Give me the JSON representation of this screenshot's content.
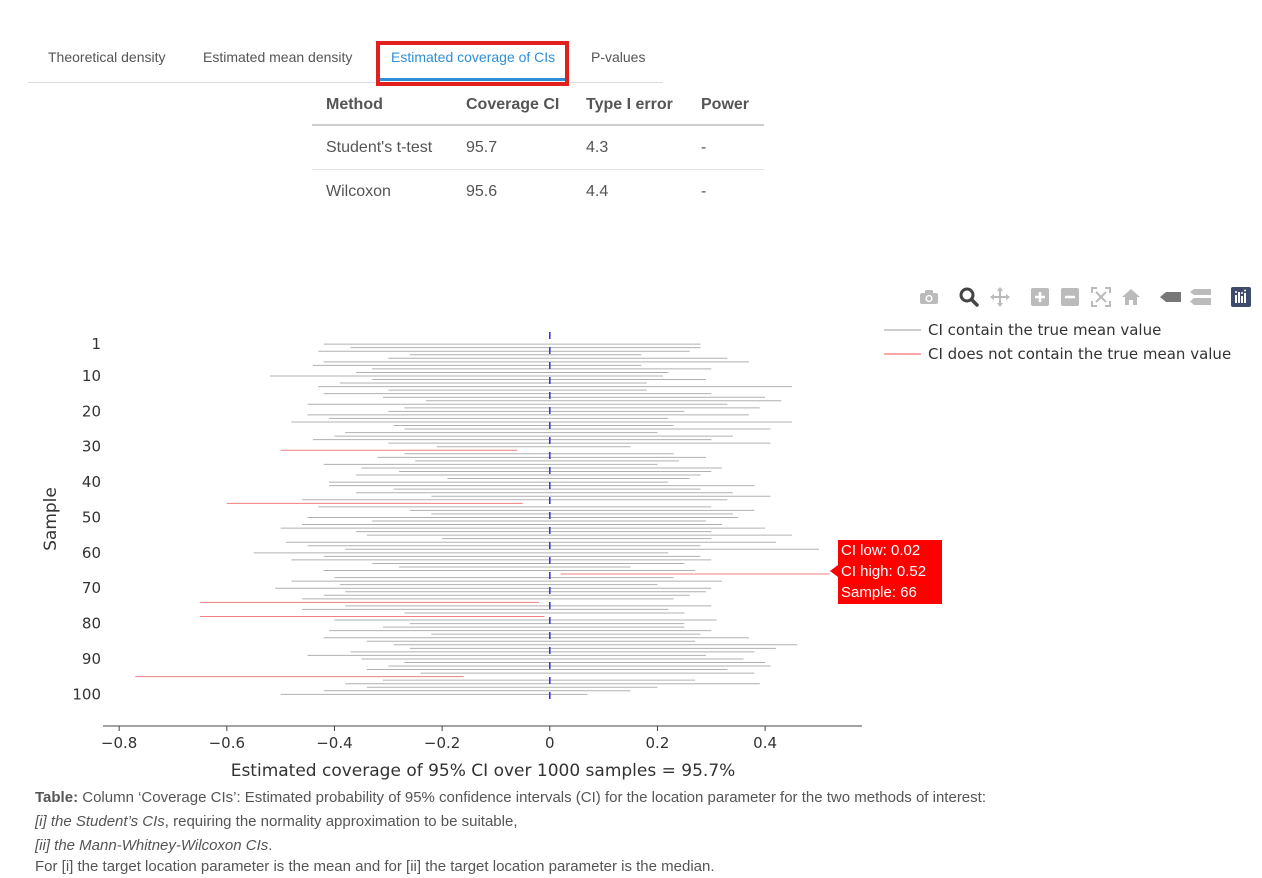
{
  "tabs": [
    {
      "label": "Theoretical density"
    },
    {
      "label": "Estimated mean density"
    },
    {
      "label": "Estimated coverage of CIs"
    },
    {
      "label": "P-values"
    }
  ],
  "table": {
    "headers": [
      "Method",
      "Coverage CI",
      "Type I error",
      "Power"
    ],
    "rows": [
      [
        "Student's t-test",
        "95.7",
        "4.3",
        "-"
      ],
      [
        "Wilcoxon",
        "95.6",
        "4.4",
        "-"
      ]
    ]
  },
  "modebar": [
    "camera-icon",
    "zoom-icon",
    "pan-icon",
    "zoom-in-icon",
    "zoom-out-icon",
    "autoscale-icon",
    "home-icon",
    "spike-lines-icon",
    "compare-hover-icon",
    "plotly-logo-icon"
  ],
  "chart_data": {
    "type": "interval",
    "title": "",
    "xlabel": "Estimated coverage of 95% CI over 1000 samples = 95.7%",
    "ylabel": "Sample",
    "xlim": [
      -0.83,
      0.58
    ],
    "ylim": [
      -3,
      105
    ],
    "x_ticks": [
      -0.8,
      -0.6,
      -0.4,
      -0.2,
      0,
      0.2,
      0.4
    ],
    "x_tick_labels": [
      "−0.8",
      "−0.6",
      "−0.4",
      "−0.2",
      "0",
      "0.2",
      "0.4"
    ],
    "y_ticks": [
      1,
      10,
      20,
      30,
      40,
      50,
      60,
      70,
      80,
      90,
      100
    ],
    "y_tick_labels": [
      "1",
      "10",
      "20",
      "30",
      "40",
      "50",
      "60",
      "70",
      "80",
      "90",
      "100"
    ],
    "true_mean": 0,
    "legend": [
      {
        "name": "CI contain the true mean value",
        "color": "#b0b0b0"
      },
      {
        "name": "CI does not contain the true mean value",
        "color": "#ff7070"
      }
    ],
    "colors": {
      "contain": "#b0b0b0",
      "miss": "#f08080",
      "reference": "#3a3ad6"
    },
    "intervals": [
      [
        -0.42,
        0.28
      ],
      [
        -0.37,
        0.28
      ],
      [
        -0.43,
        0.26
      ],
      [
        -0.26,
        0.17
      ],
      [
        -0.3,
        0.33
      ],
      [
        -0.42,
        0.37
      ],
      [
        -0.44,
        0.17
      ],
      [
        -0.33,
        0.3
      ],
      [
        -0.36,
        0.22
      ],
      [
        -0.52,
        0.21
      ],
      [
        -0.33,
        0.29
      ],
      [
        -0.39,
        0.18
      ],
      [
        -0.43,
        0.45
      ],
      [
        -0.3,
        0.18
      ],
      [
        -0.42,
        0.3
      ],
      [
        -0.31,
        0.4
      ],
      [
        -0.23,
        0.43
      ],
      [
        -0.45,
        0.33
      ],
      [
        -0.27,
        0.39
      ],
      [
        -0.3,
        0.25
      ],
      [
        -0.45,
        0.37
      ],
      [
        -0.41,
        0.22
      ],
      [
        -0.48,
        0.45
      ],
      [
        -0.29,
        0.23
      ],
      [
        -0.27,
        0.41
      ],
      [
        -0.38,
        0.2
      ],
      [
        -0.4,
        0.34
      ],
      [
        -0.44,
        0.3
      ],
      [
        -0.3,
        0.41
      ],
      [
        -0.21,
        0.15
      ],
      [
        -0.5,
        -0.06
      ],
      [
        -0.27,
        0.23
      ],
      [
        -0.32,
        0.29
      ],
      [
        -0.25,
        0.24
      ],
      [
        -0.42,
        0.2
      ],
      [
        -0.35,
        0.32
      ],
      [
        -0.28,
        0.3
      ],
      [
        -0.36,
        0.28
      ],
      [
        -0.19,
        0.26
      ],
      [
        -0.41,
        0.22
      ],
      [
        -0.41,
        0.38
      ],
      [
        -0.29,
        0.28
      ],
      [
        -0.36,
        0.34
      ],
      [
        -0.22,
        0.41
      ],
      [
        -0.46,
        0.33
      ],
      [
        -0.6,
        -0.05
      ],
      [
        -0.43,
        0.3
      ],
      [
        -0.26,
        0.38
      ],
      [
        -0.22,
        0.34
      ],
      [
        -0.45,
        0.35
      ],
      [
        -0.33,
        0.29
      ],
      [
        -0.46,
        0.32
      ],
      [
        -0.5,
        0.4
      ],
      [
        -0.36,
        0.3
      ],
      [
        -0.34,
        0.45
      ],
      [
        -0.2,
        0.3
      ],
      [
        -0.49,
        0.42
      ],
      [
        -0.45,
        0.28
      ],
      [
        -0.38,
        0.5
      ],
      [
        -0.55,
        0.22
      ],
      [
        -0.42,
        0.28
      ],
      [
        -0.48,
        0.3
      ],
      [
        -0.33,
        0.25
      ],
      [
        -0.28,
        0.15
      ],
      [
        -0.42,
        0.27
      ],
      [
        0.02,
        0.52
      ],
      [
        -0.4,
        0.23
      ],
      [
        -0.48,
        0.32
      ],
      [
        -0.39,
        0.2
      ],
      [
        -0.51,
        0.3
      ],
      [
        -0.38,
        0.29
      ],
      [
        -0.42,
        0.26
      ],
      [
        -0.46,
        0.23
      ],
      [
        -0.65,
        -0.02
      ],
      [
        -0.38,
        0.3
      ],
      [
        -0.46,
        0.22
      ],
      [
        -0.27,
        0.25
      ],
      [
        -0.65,
        -0.01
      ],
      [
        -0.4,
        0.31
      ],
      [
        -0.26,
        0.25
      ],
      [
        -0.31,
        0.25
      ],
      [
        -0.41,
        0.3
      ],
      [
        -0.22,
        0.28
      ],
      [
        -0.42,
        0.37
      ],
      [
        -0.34,
        0.27
      ],
      [
        -0.29,
        0.46
      ],
      [
        -0.26,
        0.42
      ],
      [
        -0.37,
        0.38
      ],
      [
        -0.45,
        0.29
      ],
      [
        -0.35,
        0.36
      ],
      [
        -0.27,
        0.4
      ],
      [
        -0.3,
        0.41
      ],
      [
        -0.34,
        0.33
      ],
      [
        -0.24,
        0.38
      ],
      [
        -0.77,
        -0.16
      ],
      [
        -0.31,
        0.27
      ],
      [
        -0.38,
        0.39
      ],
      [
        -0.34,
        0.2
      ],
      [
        -0.42,
        0.15
      ],
      [
        -0.5,
        0.07
      ]
    ],
    "hover": {
      "sample": 66,
      "ci_low": 0.02,
      "ci_high": 0.52
    }
  },
  "hover": {
    "low": "CI low: 0.02",
    "high": "CI high: 0.52",
    "sample": "Sample: 66"
  },
  "caption": {
    "table_bold": "Table:",
    "table_text": " Column ‘Coverage CIs’: Estimated probability of 95% confidence intervals (CI) for the location parameter for the two methods of interest:",
    "line1_italic": "[i] the Student’s CIs",
    "line1_text": ", requiring the normality approximation to be suitable,",
    "line2_italic": "[ii] the Mann-Whitney-Wilcoxon CIs",
    "line2_text": ".",
    "line3": "For [i] the target location parameter is the mean and for [ii] the target location parameter is the median."
  }
}
